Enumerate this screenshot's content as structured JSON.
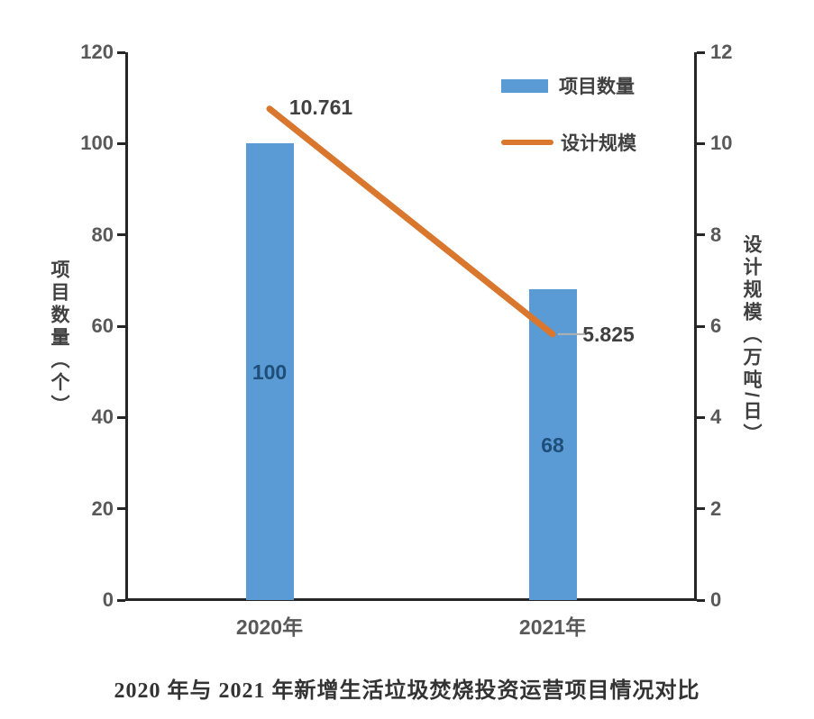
{
  "chart_data": {
    "type": "combo",
    "categories": [
      "2020年",
      "2021年"
    ],
    "series": [
      {
        "name": "项目数量",
        "chart_type": "bar",
        "axis": "left",
        "values": [
          100,
          68
        ],
        "value_labels": [
          "100",
          "68"
        ],
        "color": "#5b9bd5",
        "label_color": "#1f4e79"
      },
      {
        "name": "设计规模",
        "chart_type": "line",
        "axis": "right",
        "values": [
          10.761,
          5.825
        ],
        "value_labels": [
          "10.761",
          "5.825"
        ],
        "color": "#d9772e",
        "label_color": "#404040"
      }
    ],
    "left_axis": {
      "title": "项目数量（个）",
      "min": 0,
      "max": 120,
      "ticks": [
        0,
        20,
        40,
        60,
        80,
        100,
        120
      ]
    },
    "right_axis": {
      "title": "设计规模（万吨/日）",
      "min": 0,
      "max": 12,
      "ticks": [
        0,
        2,
        4,
        6,
        8,
        10,
        12
      ]
    },
    "legend": {
      "position": "top-right-inside",
      "items": [
        {
          "label": "项目数量",
          "swatch": "bar"
        },
        {
          "label": "设计规模",
          "swatch": "line"
        }
      ]
    },
    "grid": false,
    "background": "#ffffff",
    "axis_color": "#262626",
    "tick_label_color": "#595959",
    "caption": "2020 年与 2021 年新增生活垃圾焚烧投资运营项目情况对比"
  }
}
